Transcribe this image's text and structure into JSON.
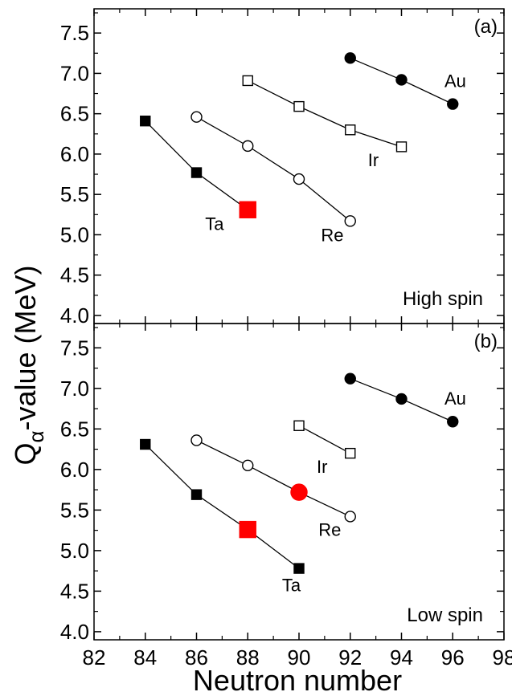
{
  "chart_data": {
    "type": "scatter",
    "xlabel": "Neutron number",
    "ylabel_main": "Q",
    "ylabel_sub": "α",
    "ylabel_rest": "-value (MeV)",
    "xlim": [
      82,
      98
    ],
    "xticks": [
      82,
      84,
      86,
      88,
      90,
      92,
      94,
      96,
      98
    ],
    "panels": [
      {
        "id": "a",
        "panel_label": "(a)",
        "condition_label": "High spin",
        "ylim": [
          3.9,
          7.8
        ],
        "yticks": [
          4.0,
          4.5,
          5.0,
          5.5,
          6.0,
          6.5,
          7.0,
          7.5
        ],
        "series": [
          {
            "name": "Au",
            "marker": "circle",
            "filled": true,
            "x": [
              92,
              94,
              96
            ],
            "y": [
              7.19,
              6.92,
              6.62
            ]
          },
          {
            "name": "Ir",
            "marker": "square",
            "filled": false,
            "x": [
              88,
              90,
              92,
              94
            ],
            "y": [
              6.91,
              6.59,
              6.3,
              6.09
            ]
          },
          {
            "name": "Re",
            "marker": "circle",
            "filled": false,
            "x": [
              86,
              88,
              90,
              92
            ],
            "y": [
              6.46,
              6.1,
              5.69,
              5.17
            ]
          },
          {
            "name": "Ta",
            "marker": "square",
            "filled": true,
            "x": [
              84,
              86,
              88
            ],
            "y": [
              6.41,
              5.77,
              5.31
            ],
            "highlight_x": [
              88
            ]
          }
        ],
        "labels": [
          {
            "text": "Au",
            "x": 96.1,
            "y": 6.83
          },
          {
            "text": "Ir",
            "x": 92.9,
            "y": 5.85
          },
          {
            "text": "Re",
            "x": 91.3,
            "y": 4.92
          },
          {
            "text": "Ta",
            "x": 86.7,
            "y": 5.06
          }
        ]
      },
      {
        "id": "b",
        "panel_label": "(b)",
        "condition_label": "Low spin",
        "ylim": [
          3.9,
          7.8
        ],
        "yticks": [
          4.0,
          4.5,
          5.0,
          5.5,
          6.0,
          6.5,
          7.0,
          7.5
        ],
        "series": [
          {
            "name": "Au",
            "marker": "circle",
            "filled": true,
            "x": [
              92,
              94,
              96
            ],
            "y": [
              7.12,
              6.87,
              6.59
            ]
          },
          {
            "name": "Ir",
            "marker": "square",
            "filled": false,
            "x": [
              90,
              92
            ],
            "y": [
              6.54,
              6.2
            ]
          },
          {
            "name": "Re",
            "marker": "circle",
            "filled": false,
            "x": [
              86,
              88,
              90,
              92
            ],
            "y": [
              6.36,
              6.05,
              5.72,
              5.42
            ],
            "highlight_x": [
              90
            ]
          },
          {
            "name": "Ta",
            "marker": "square",
            "filled": true,
            "x": [
              84,
              86,
              88,
              90
            ],
            "y": [
              6.31,
              5.69,
              5.26,
              4.78
            ],
            "highlight_x": [
              88
            ]
          }
        ],
        "labels": [
          {
            "text": "Au",
            "x": 96.1,
            "y": 6.8
          },
          {
            "text": "Ir",
            "x": 90.9,
            "y": 5.96
          },
          {
            "text": "Re",
            "x": 91.2,
            "y": 5.18
          },
          {
            "text": "Ta",
            "x": 89.7,
            "y": 4.5
          }
        ]
      }
    ]
  },
  "colors": {
    "axis": "#000000",
    "marker": "#000000",
    "highlight": "#ff0000",
    "open_fill": "#ffffff"
  }
}
